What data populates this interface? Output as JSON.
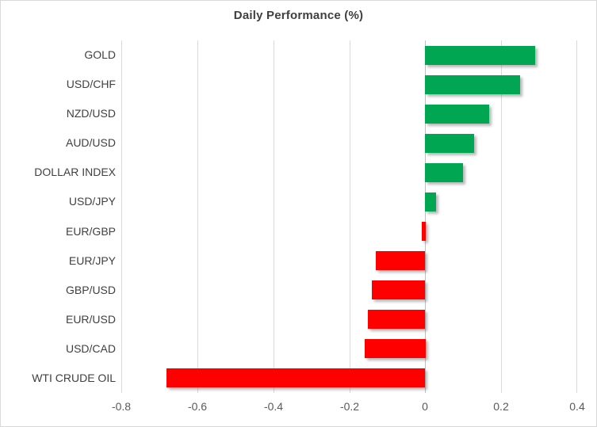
{
  "chart_data": {
    "type": "bar",
    "orientation": "horizontal",
    "title": "Daily Performance (%)",
    "categories": [
      "GOLD",
      "USD/CHF",
      "NZD/USD",
      "AUD/USD",
      "DOLLAR INDEX",
      "USD/JPY",
      "EUR/GBP",
      "EUR/JPY",
      "GBP/USD",
      "EUR/USD",
      "USD/CAD",
      "WTI CRUDE OIL"
    ],
    "values": [
      0.29,
      0.25,
      0.17,
      0.13,
      0.1,
      0.03,
      -0.01,
      -0.13,
      -0.14,
      -0.15,
      -0.16,
      -0.68
    ],
    "xlabel": "",
    "ylabel": "",
    "xlim": [
      -0.8,
      0.4
    ],
    "x_ticks": [
      "-0.8",
      "-0.6",
      "-0.4",
      "-0.2",
      "0",
      "0.2",
      "0.4"
    ],
    "x_tick_values": [
      -0.8,
      -0.6,
      -0.4,
      -0.2,
      0,
      0.2,
      0.4
    ],
    "grid": "vertical-gridlines-on",
    "legend": "none",
    "colors": {
      "positive_bar": "#00A651",
      "negative_bar": "#FF0000",
      "gridline": "#D9D9D9",
      "zero_axis": "#BFBFBF",
      "title_text": "#404040",
      "category_text": "#404040",
      "tick_text": "#595959",
      "background": "#FFFFFF"
    }
  }
}
